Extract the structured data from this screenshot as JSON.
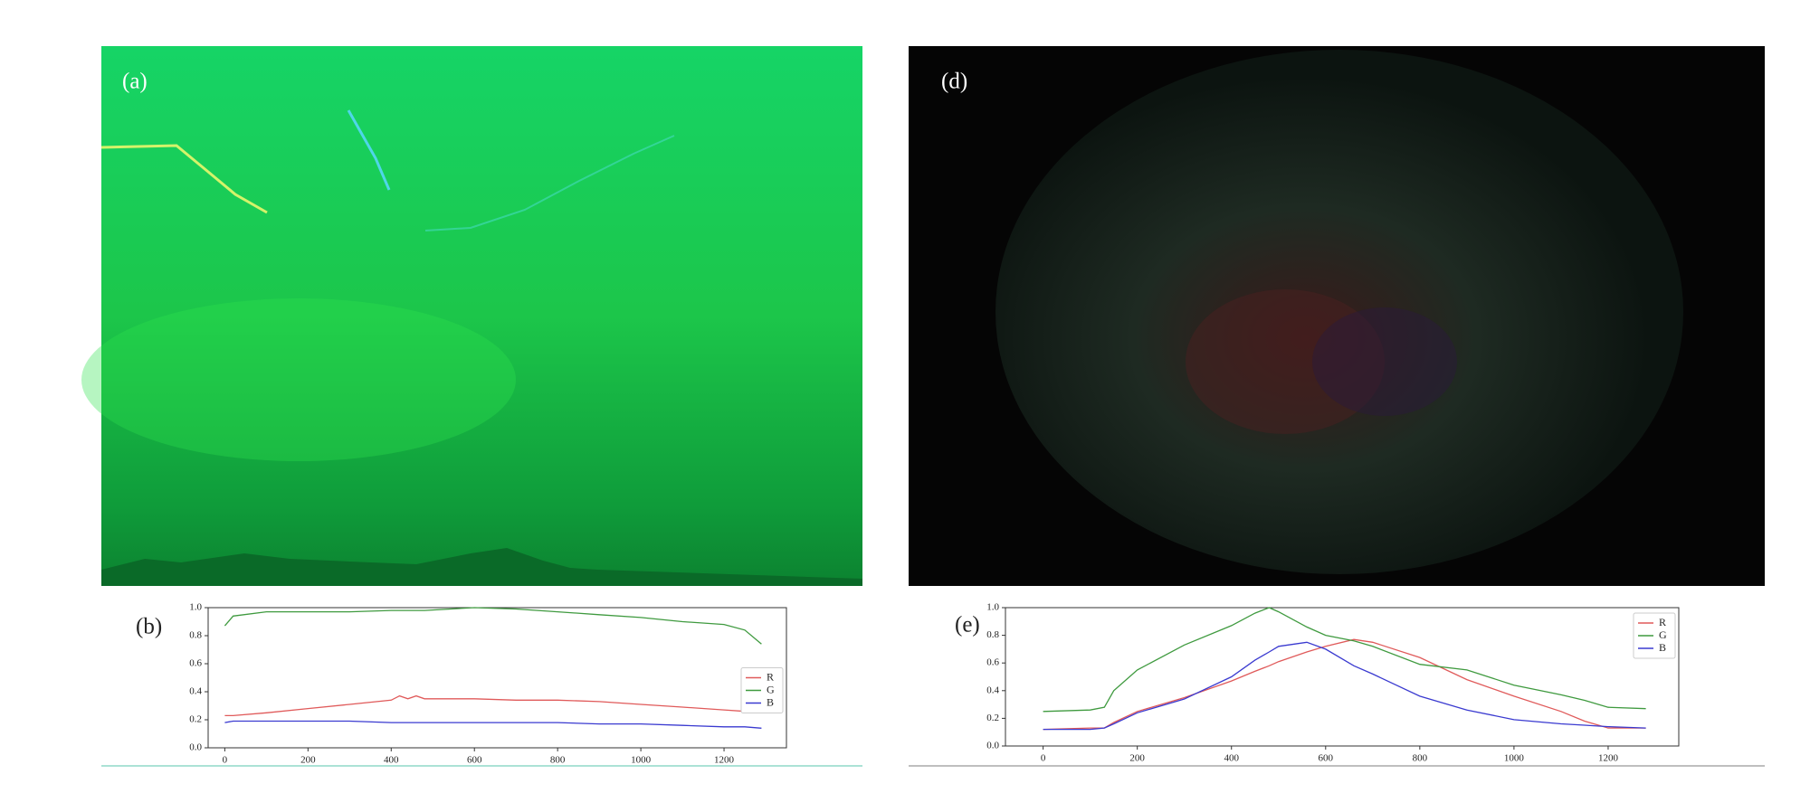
{
  "images": [
    {
      "label": "(a)"
    },
    {
      "label": "(d)"
    }
  ],
  "chart_data": [
    {
      "type": "line",
      "label": "(b)",
      "legend": "center right",
      "grid": false,
      "x": [
        0,
        20,
        100,
        200,
        300,
        400,
        420,
        440,
        460,
        480,
        600,
        700,
        800,
        900,
        1000,
        1100,
        1200,
        1250,
        1290
      ],
      "series": [
        {
          "name": "R",
          "color": "#e05a5a",
          "values": [
            0.23,
            0.23,
            0.25,
            0.28,
            0.31,
            0.34,
            0.37,
            0.35,
            0.37,
            0.35,
            0.35,
            0.34,
            0.34,
            0.33,
            0.31,
            0.29,
            0.27,
            0.26,
            0.26
          ]
        },
        {
          "name": "G",
          "color": "#3f9a3f",
          "values": [
            0.87,
            0.94,
            0.97,
            0.97,
            0.97,
            0.98,
            0.98,
            0.98,
            0.98,
            0.98,
            1.0,
            0.99,
            0.97,
            0.95,
            0.93,
            0.9,
            0.88,
            0.84,
            0.74
          ]
        },
        {
          "name": "B",
          "color": "#3a3ad0",
          "values": [
            0.18,
            0.19,
            0.19,
            0.19,
            0.19,
            0.18,
            0.18,
            0.18,
            0.18,
            0.18,
            0.18,
            0.18,
            0.18,
            0.17,
            0.17,
            0.16,
            0.15,
            0.15,
            0.14
          ]
        }
      ],
      "xlim": [
        -40,
        1350
      ],
      "xticks": [
        0,
        200,
        400,
        600,
        800,
        1000,
        1200
      ],
      "ylim": [
        0,
        1
      ],
      "yticks": [
        {
          "value": 0,
          "label": "0.0"
        },
        0.2,
        0.4,
        0.6,
        0.8,
        {
          "value": 1,
          "label": "1.0"
        }
      ]
    },
    {
      "type": "line",
      "label": "(e)",
      "legend": "upper right",
      "grid": false,
      "x": [
        0,
        100,
        130,
        150,
        200,
        300,
        400,
        450,
        480,
        500,
        560,
        600,
        660,
        700,
        800,
        900,
        1000,
        1100,
        1150,
        1200,
        1280
      ],
      "series": [
        {
          "name": "R",
          "color": "#e05a5a",
          "values": [
            0.12,
            0.13,
            0.13,
            0.17,
            0.25,
            0.35,
            0.47,
            0.54,
            0.58,
            0.61,
            0.68,
            0.72,
            0.77,
            0.75,
            0.64,
            0.48,
            0.36,
            0.25,
            0.18,
            0.13,
            0.13
          ]
        },
        {
          "name": "G",
          "color": "#3f9a3f",
          "values": [
            0.25,
            0.26,
            0.28,
            0.4,
            0.55,
            0.73,
            0.87,
            0.96,
            1.0,
            0.97,
            0.86,
            0.8,
            0.76,
            0.72,
            0.59,
            0.55,
            0.44,
            0.37,
            0.33,
            0.28,
            0.27
          ]
        },
        {
          "name": "B",
          "color": "#3a3ad0",
          "values": [
            0.12,
            0.12,
            0.13,
            0.16,
            0.24,
            0.34,
            0.5,
            0.62,
            0.68,
            0.72,
            0.75,
            0.7,
            0.58,
            0.52,
            0.36,
            0.26,
            0.19,
            0.16,
            0.15,
            0.14,
            0.13
          ]
        }
      ],
      "xlim": [
        -80,
        1350
      ],
      "xticks": [
        0,
        200,
        400,
        600,
        800,
        1000,
        1200
      ],
      "ylim": [
        0,
        1
      ],
      "yticks": [
        {
          "value": 0,
          "label": "0.0"
        },
        0.2,
        0.4,
        0.6,
        0.8,
        {
          "value": 1,
          "label": "1.0"
        }
      ]
    }
  ]
}
